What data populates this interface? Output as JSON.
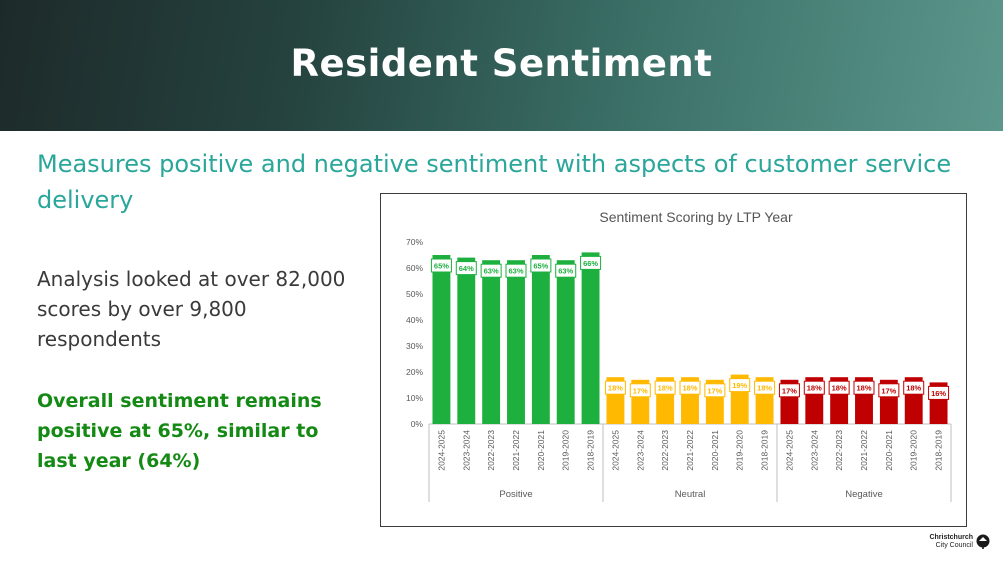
{
  "slide": {
    "title": "Resident Sentiment",
    "subtitle": "Measures positive and negative sentiment with aspects of customer service delivery",
    "analysis": "Analysis looked at over 82,000 scores by over 9,800 respondents",
    "overall": "Overall sentiment remains positive at 65%, similar to last year (64%)"
  },
  "logo": {
    "line1": "Christchurch",
    "line2": "City Council",
    "icon": "tree-icon"
  },
  "colors": {
    "positive": "#1db03f",
    "neutral": "#ffb900",
    "negative": "#c00000",
    "title_text": "#ffffff",
    "subtitle": "#2aa69a",
    "overall": "#148a14"
  },
  "chart_data": {
    "type": "bar",
    "title": "Sentiment Scoring by LTP Year",
    "xlabel": "",
    "ylabel": "",
    "ylim": [
      0,
      70
    ],
    "yticks": [
      "0%",
      "10%",
      "20%",
      "30%",
      "40%",
      "50%",
      "60%",
      "70%"
    ],
    "grid": false,
    "groups": [
      {
        "name": "Positive",
        "color_key": "positive",
        "categories": [
          "2024-2025",
          "2023-2024",
          "2022-2023",
          "2021-2022",
          "2020-2021",
          "2019-2020",
          "2018-2019"
        ],
        "values": [
          65,
          64,
          63,
          63,
          65,
          63,
          66
        ],
        "labels": [
          "65%",
          "64%",
          "63%",
          "63%",
          "65%",
          "63%",
          "66%"
        ]
      },
      {
        "name": "Neutral",
        "color_key": "neutral",
        "categories": [
          "2024-2025",
          "2023-2024",
          "2022-2023",
          "2021-2022",
          "2020-2021",
          "2019-2020",
          "2018-2019"
        ],
        "values": [
          18,
          17,
          18,
          18,
          17,
          19,
          18
        ],
        "labels": [
          "18%",
          "17%",
          "18%",
          "18%",
          "17%",
          "19%",
          "18%"
        ]
      },
      {
        "name": "Negative",
        "color_key": "negative",
        "categories": [
          "2024-2025",
          "2023-2024",
          "2022-2023",
          "2021-2022",
          "2020-2021",
          "2019-2020",
          "2018-2019"
        ],
        "values": [
          17,
          18,
          18,
          18,
          17,
          18,
          16
        ],
        "labels": [
          "17%",
          "18%",
          "18%",
          "18%",
          "17%",
          "18%",
          "16%"
        ]
      }
    ]
  }
}
